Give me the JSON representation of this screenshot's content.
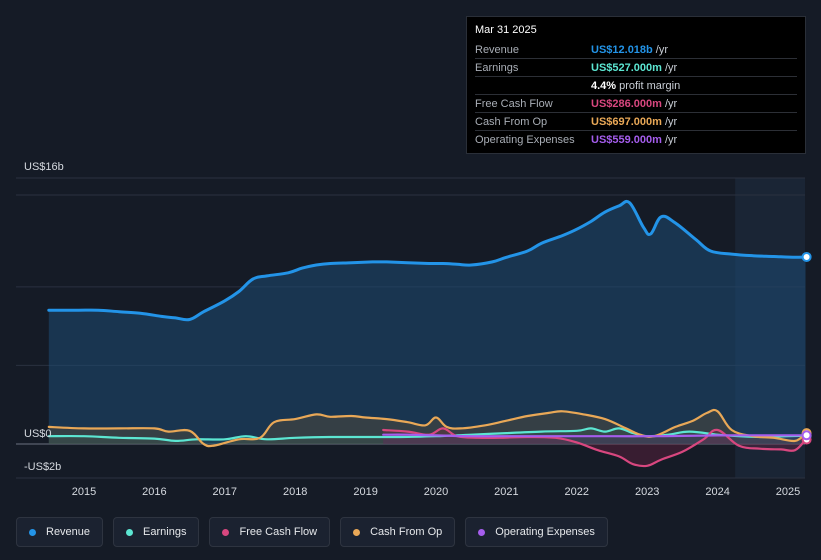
{
  "tooltip": {
    "date": "Mar 31 2025",
    "rows": [
      {
        "label": "Revenue",
        "value": "US$12.018b",
        "unit": "/yr",
        "color": "#2394e8"
      },
      {
        "label": "Earnings",
        "value": "US$527.000m",
        "unit": "/yr",
        "color": "#5ce6d2"
      },
      {
        "label": "",
        "value": "4.4%",
        "unit": "profit margin",
        "color": "#ffffff"
      },
      {
        "label": "Free Cash Flow",
        "value": "US$286.000m",
        "unit": "/yr",
        "color": "#d8477f"
      },
      {
        "label": "Cash From Op",
        "value": "US$697.000m",
        "unit": "/yr",
        "color": "#e9a857"
      },
      {
        "label": "Operating Expenses",
        "value": "US$559.000m",
        "unit": "/yr",
        "color": "#a55ded"
      }
    ]
  },
  "legend": [
    {
      "label": "Revenue",
      "color": "#2394e8"
    },
    {
      "label": "Earnings",
      "color": "#5ce6d2"
    },
    {
      "label": "Free Cash Flow",
      "color": "#d8477f"
    },
    {
      "label": "Cash From Op",
      "color": "#e9a857"
    },
    {
      "label": "Operating Expenses",
      "color": "#a55ded"
    }
  ],
  "chart_data": {
    "type": "area",
    "ylim": [
      -2,
      16
    ],
    "y_ticks": [
      {
        "label": "US$16b",
        "value": 16
      },
      {
        "label": "US$0",
        "value": 0
      },
      {
        "label": "-US$2b",
        "value": -2
      }
    ],
    "x_ticks": [
      "2015",
      "2016",
      "2017",
      "2018",
      "2019",
      "2020",
      "2021",
      "2022",
      "2023",
      "2024",
      "2025"
    ],
    "x_tick_values": [
      2015,
      2016,
      2017,
      2018,
      2019,
      2020,
      2021,
      2022,
      2023,
      2024,
      2025
    ],
    "xlim": [
      2013.9,
      2025.25
    ],
    "forecast_start": 2024.25,
    "series": [
      {
        "name": "Revenue",
        "color": "#2394e8",
        "x": [
          2014.5,
          2014.9,
          2015.2,
          2015.5,
          2015.8,
          2016.1,
          2016.3,
          2016.5,
          2016.7,
          2017.0,
          2017.2,
          2017.4,
          2017.6,
          2017.9,
          2018.1,
          2018.3,
          2018.5,
          2018.8,
          2019.1,
          2019.3,
          2019.6,
          2019.9,
          2020.1,
          2020.3,
          2020.5,
          2020.8,
          2021.0,
          2021.3,
          2021.5,
          2021.8,
          2022.0,
          2022.2,
          2022.4,
          2022.6,
          2022.75,
          2022.95,
          2023.05,
          2023.2,
          2023.4,
          2023.7,
          2023.9,
          2024.2,
          2024.5,
          2024.8,
          2025.1,
          2025.25
        ],
        "values": [
          8.6,
          8.6,
          8.6,
          8.5,
          8.4,
          8.2,
          8.1,
          8.0,
          8.5,
          9.2,
          9.8,
          10.6,
          10.8,
          11.0,
          11.3,
          11.5,
          11.6,
          11.65,
          11.7,
          11.7,
          11.65,
          11.6,
          11.6,
          11.55,
          11.5,
          11.7,
          12.0,
          12.4,
          12.9,
          13.4,
          13.8,
          14.3,
          14.9,
          15.3,
          15.5,
          13.9,
          13.5,
          14.6,
          14.2,
          13.1,
          12.4,
          12.2,
          12.1,
          12.05,
          12.0,
          12.018
        ]
      },
      {
        "name": "Earnings",
        "color": "#5ce6d2",
        "x": [
          2014.5,
          2015.0,
          2015.5,
          2016.0,
          2016.3,
          2016.6,
          2017.0,
          2017.3,
          2017.6,
          2018.0,
          2018.5,
          2019.0,
          2019.5,
          2020.0,
          2020.5,
          2021.0,
          2021.5,
          2022.0,
          2022.2,
          2022.4,
          2022.6,
          2022.8,
          2023.0,
          2023.3,
          2023.6,
          2024.0,
          2024.3,
          2024.6,
          2025.0,
          2025.25
        ],
        "values": [
          0.5,
          0.5,
          0.4,
          0.35,
          0.2,
          0.3,
          0.3,
          0.5,
          0.3,
          0.4,
          0.45,
          0.45,
          0.45,
          0.5,
          0.6,
          0.7,
          0.8,
          0.85,
          1.0,
          0.8,
          1.0,
          0.7,
          0.5,
          0.6,
          0.8,
          0.6,
          0.5,
          0.45,
          0.5,
          0.527
        ]
      },
      {
        "name": "Free Cash Flow",
        "color": "#d8477f",
        "x": [
          2019.25,
          2019.6,
          2019.9,
          2020.1,
          2020.3,
          2020.6,
          2020.9,
          2021.3,
          2021.7,
          2022.0,
          2022.3,
          2022.6,
          2022.8,
          2023.0,
          2023.2,
          2023.5,
          2023.8,
          2024.0,
          2024.3,
          2024.6,
          2024.9,
          2025.1,
          2025.25
        ],
        "values": [
          0.9,
          0.8,
          0.6,
          1.0,
          0.5,
          0.4,
          0.4,
          0.45,
          0.4,
          0.1,
          -0.4,
          -0.8,
          -1.3,
          -1.4,
          -1.0,
          -0.5,
          0.3,
          0.9,
          -0.1,
          -0.3,
          -0.35,
          -0.4,
          0.286
        ]
      },
      {
        "name": "Cash From Op",
        "color": "#e9a857",
        "x": [
          2014.5,
          2015.0,
          2015.5,
          2016.0,
          2016.2,
          2016.5,
          2016.7,
          2016.85,
          2017.2,
          2017.5,
          2017.7,
          2018.0,
          2018.3,
          2018.5,
          2018.8,
          2019.0,
          2019.3,
          2019.6,
          2019.85,
          2020.0,
          2020.15,
          2020.35,
          2020.7,
          2021.0,
          2021.3,
          2021.6,
          2021.8,
          2022.1,
          2022.4,
          2022.7,
          2022.9,
          2023.1,
          2023.4,
          2023.65,
          2023.85,
          2024.0,
          2024.2,
          2024.5,
          2024.8,
          2025.1,
          2025.25
        ],
        "values": [
          1.1,
          1.0,
          1.0,
          1.0,
          0.8,
          0.85,
          0.0,
          -0.1,
          0.3,
          0.4,
          1.4,
          1.6,
          1.9,
          1.75,
          1.8,
          1.7,
          1.6,
          1.4,
          1.2,
          1.7,
          1.1,
          1.0,
          1.2,
          1.5,
          1.8,
          2.0,
          2.1,
          1.9,
          1.6,
          1.0,
          0.6,
          0.5,
          1.1,
          1.5,
          2.0,
          2.1,
          0.9,
          0.5,
          0.4,
          0.2,
          0.697
        ]
      },
      {
        "name": "Operating Expenses",
        "color": "#a55ded",
        "x": [
          2019.25,
          2019.6,
          2020.0,
          2020.5,
          2021.0,
          2021.5,
          2022.0,
          2022.5,
          2023.0,
          2023.5,
          2024.0,
          2024.5,
          2025.0,
          2025.25
        ],
        "values": [
          0.6,
          0.6,
          0.55,
          0.5,
          0.5,
          0.5,
          0.5,
          0.5,
          0.5,
          0.52,
          0.55,
          0.56,
          0.56,
          0.559
        ]
      }
    ]
  }
}
